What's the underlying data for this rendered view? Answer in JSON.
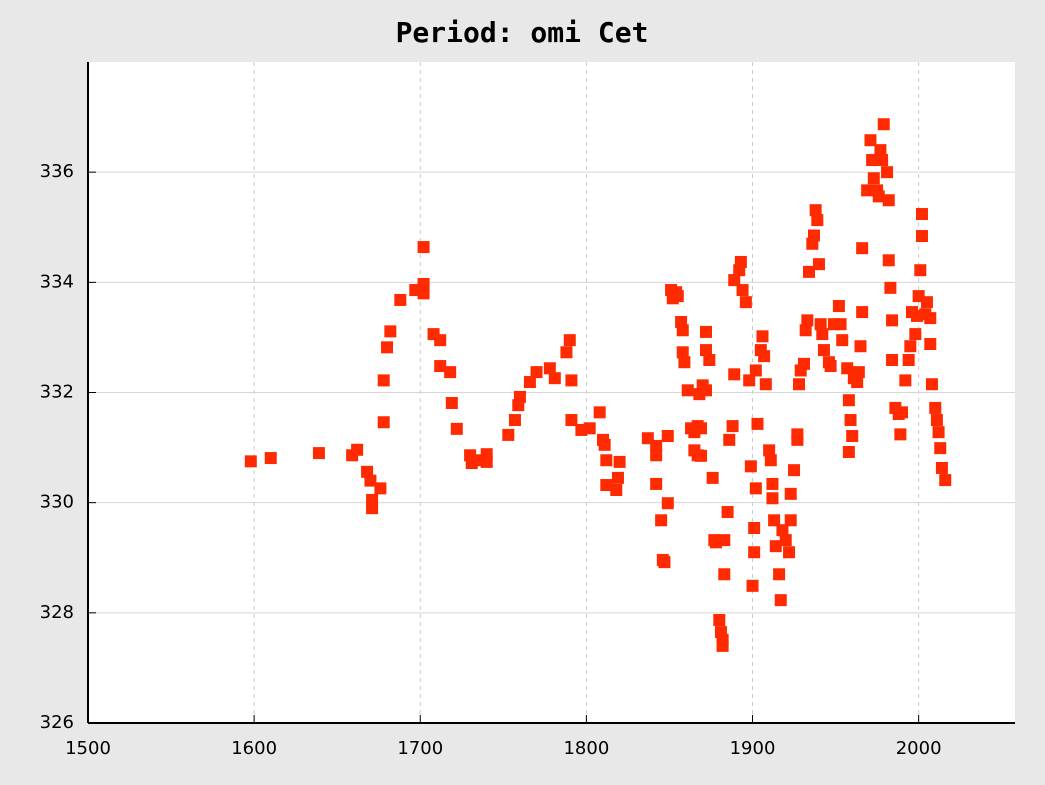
{
  "chart_data": {
    "type": "scatter",
    "title": "Period: omi Cet",
    "color": "#ff2a00",
    "grid": true,
    "xlim": [
      1500,
      2058
    ],
    "xticks": [
      1500,
      1600,
      1700,
      1800,
      1900,
      2000
    ],
    "ylim": [
      326,
      338
    ],
    "yticks": [
      326,
      328,
      330,
      332,
      334,
      336
    ],
    "x": [
      1598,
      1610,
      1639,
      1659,
      1662,
      1668,
      1670,
      1671,
      1671,
      1676,
      1678,
      1678,
      1680,
      1682,
      1688,
      1697,
      1702,
      1702,
      1702,
      1708,
      1712,
      1712,
      1718,
      1719,
      1722,
      1730,
      1731,
      1736,
      1740,
      1740,
      1753,
      1757,
      1759,
      1760,
      1766,
      1770,
      1778,
      1781,
      1788,
      1790,
      1791,
      1791,
      1797,
      1802,
      1808,
      1810,
      1811,
      1812,
      1812,
      1818,
      1819,
      1820,
      1837,
      1842,
      1842,
      1842,
      1845,
      1846,
      1847,
      1849,
      1849,
      1851,
      1854,
      1852,
      1855,
      1857,
      1858,
      1858,
      1859,
      1861,
      1863,
      1865,
      1867,
      1865,
      1867,
      1869,
      1869,
      1868,
      1870,
      1872,
      1872,
      1874,
      1872,
      1876,
      1877,
      1878,
      1883,
      1880,
      1881,
      1882,
      1882,
      1883,
      1885,
      1886,
      1888,
      1889,
      1889,
      1892,
      1893,
      1894,
      1896,
      1898,
      1899,
      1900,
      1901,
      1901,
      1902,
      1902,
      1903,
      1905,
      1906,
      1907,
      1908,
      1910,
      1911,
      1912,
      1912,
      1913,
      1914,
      1916,
      1917,
      1918,
      1920,
      1922,
      1923,
      1923,
      1925,
      1927,
      1927,
      1928,
      1929,
      1931,
      1932,
      1933,
      1934,
      1936,
      1937,
      1938,
      1939,
      1940,
      1941,
      1942,
      1943,
      1946,
      1947,
      1949,
      1952,
      1953,
      1954,
      1957,
      1958,
      1959,
      1960,
      1958,
      1961,
      1963,
      1964,
      1965,
      1966,
      1966,
      1969,
      1971,
      1972,
      1973,
      1975,
      1976,
      1977,
      1978,
      1979,
      1981,
      1982,
      1982,
      1983,
      1984,
      1984,
      1986,
      1988,
      1989,
      1990,
      1992,
      1994,
      1995,
      1996,
      1998,
      1999,
      2000,
      2001,
      2002,
      2002,
      2004,
      2005,
      2007,
      2007,
      2008,
      2010,
      2011,
      2012,
      2013,
      2014,
      2016
    ],
    "values": [
      330.75,
      330.81,
      330.9,
      330.86,
      330.96,
      330.56,
      330.4,
      329.9,
      330.05,
      330.26,
      331.46,
      332.22,
      332.82,
      333.11,
      333.68,
      333.86,
      333.97,
      333.8,
      334.64,
      333.06,
      332.95,
      332.48,
      332.37,
      331.81,
      331.34,
      330.86,
      330.72,
      330.77,
      330.74,
      330.88,
      331.23,
      331.5,
      331.77,
      331.92,
      332.19,
      332.37,
      332.44,
      332.26,
      332.73,
      332.95,
      332.22,
      331.5,
      331.32,
      331.35,
      331.64,
      331.14,
      331.05,
      330.77,
      330.32,
      330.23,
      330.45,
      330.74,
      331.17,
      331.03,
      330.86,
      330.34,
      329.68,
      328.96,
      328.92,
      329.99,
      331.21,
      333.86,
      333.82,
      333.71,
      333.75,
      333.28,
      333.13,
      332.73,
      332.55,
      332.04,
      331.35,
      331.28,
      331.39,
      330.95,
      330.86,
      330.85,
      331.35,
      331.97,
      332.13,
      332.04,
      332.77,
      332.59,
      333.1,
      330.45,
      329.32,
      329.28,
      329.32,
      327.87,
      327.65,
      327.4,
      327.51,
      328.7,
      329.83,
      331.14,
      331.39,
      332.33,
      334.04,
      334.22,
      334.37,
      333.86,
      333.64,
      332.22,
      330.66,
      328.49,
      329.54,
      329.1,
      330.26,
      332.4,
      331.43,
      332.77,
      333.02,
      332.66,
      332.15,
      330.95,
      330.77,
      330.34,
      330.08,
      329.68,
      329.21,
      328.7,
      328.23,
      329.5,
      329.32,
      329.1,
      329.68,
      330.16,
      330.59,
      331.14,
      331.24,
      332.15,
      332.4,
      332.52,
      333.13,
      333.31,
      334.19,
      334.7,
      334.85,
      335.31,
      335.13,
      334.33,
      333.24,
      333.06,
      332.77,
      332.55,
      332.48,
      333.24,
      333.57,
      333.24,
      332.95,
      332.44,
      331.86,
      331.5,
      331.21,
      330.92,
      332.26,
      332.19,
      332.37,
      332.84,
      333.46,
      334.62,
      335.67,
      336.58,
      336.22,
      335.89,
      335.67,
      335.56,
      336.4,
      336.22,
      336.87,
      336.0,
      335.49,
      334.4,
      333.9,
      333.31,
      332.59,
      331.72,
      331.61,
      331.24,
      331.64,
      332.22,
      332.59,
      332.84,
      333.46,
      333.06,
      333.39,
      333.75,
      334.22,
      334.84,
      335.24,
      333.42,
      333.64,
      333.35,
      332.88,
      332.15,
      331.72,
      331.5,
      331.28,
      330.99,
      330.63,
      330.41
    ]
  }
}
